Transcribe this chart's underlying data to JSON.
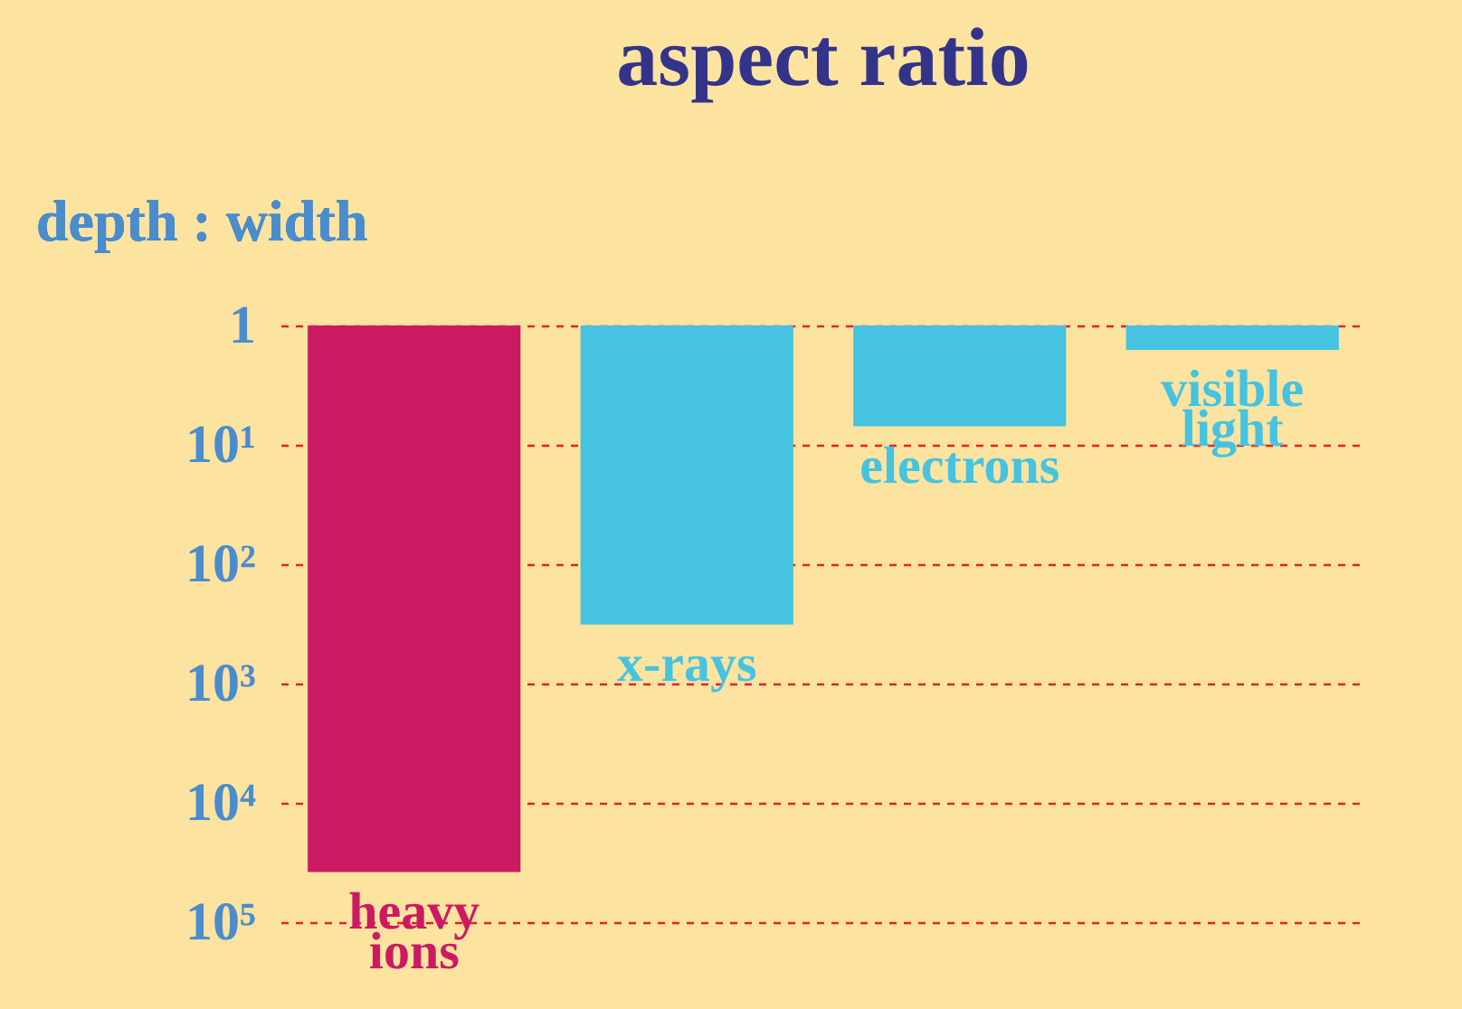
{
  "chart_data": {
    "type": "bar",
    "title": "aspect ratio",
    "ylabel": "depth : width",
    "categories": [
      "heavy ions",
      "x-rays",
      "electrons",
      "visible light"
    ],
    "values": [
      38000,
      320,
      7,
      1.6
    ],
    "colors": [
      "#cc1a62",
      "#45c3e0",
      "#45c3e0",
      "#45c3e0"
    ],
    "log": "y",
    "ylim": [
      100000,
      1
    ],
    "yticks": [
      {
        "value": 1,
        "label": "1"
      },
      {
        "value": 10,
        "label": "10¹"
      },
      {
        "value": 100,
        "label": "10²"
      },
      {
        "value": 1000,
        "label": "10³"
      },
      {
        "value": 10000,
        "label": "10⁴"
      },
      {
        "value": 100000,
        "label": "10⁵"
      }
    ],
    "grid": "y"
  }
}
